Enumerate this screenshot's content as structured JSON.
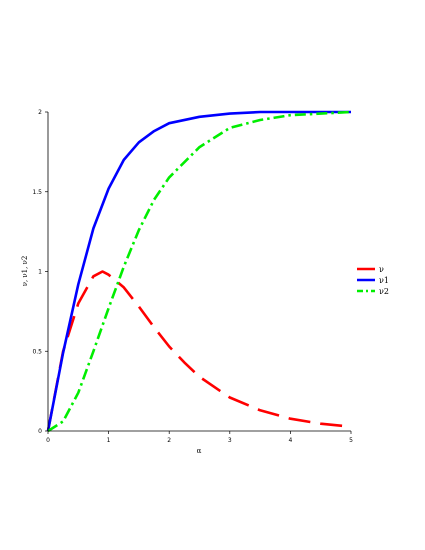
{
  "chart_data": {
    "type": "line",
    "xlabel": "α",
    "ylabel": "ν,  ν1,  ν2",
    "xlim": [
      0,
      5
    ],
    "ylim": [
      0,
      2
    ],
    "x_ticks": [
      "0",
      "1",
      "2",
      "3",
      "4",
      "5"
    ],
    "y_ticks": [
      "0",
      "0.5",
      "1",
      "1.5",
      "2"
    ],
    "grid": false,
    "legend_position": "right",
    "series": [
      {
        "name": "ν",
        "color": "#ff0000",
        "style": "long-dash",
        "x": [
          0,
          0.25,
          0.5,
          0.75,
          0.9,
          1.0,
          1.25,
          1.5,
          1.75,
          2.0,
          2.25,
          2.5,
          3.0,
          3.5,
          4.0,
          4.5,
          5.0
        ],
        "y": [
          0,
          0.5,
          0.8,
          0.97,
          1.0,
          0.98,
          0.9,
          0.78,
          0.65,
          0.53,
          0.43,
          0.34,
          0.21,
          0.13,
          0.077,
          0.046,
          0.027
        ]
      },
      {
        "name": "ν1",
        "color": "#0000ff",
        "style": "solid",
        "x": [
          0,
          0.25,
          0.5,
          0.75,
          1.0,
          1.25,
          1.5,
          1.75,
          2.0,
          2.5,
          3.0,
          3.5,
          4.0,
          5.0
        ],
        "y": [
          0,
          0.49,
          0.92,
          1.27,
          1.52,
          1.7,
          1.81,
          1.88,
          1.93,
          1.97,
          1.99,
          2.0,
          2.0,
          2.0
        ]
      },
      {
        "name": "ν2",
        "color": "#00ee00",
        "style": "dash-dot",
        "x": [
          0,
          0.25,
          0.5,
          0.75,
          1.0,
          1.25,
          1.5,
          1.75,
          2.0,
          2.5,
          3.0,
          3.5,
          4.0,
          5.0
        ],
        "y": [
          0,
          0.06,
          0.24,
          0.5,
          0.77,
          1.03,
          1.26,
          1.45,
          1.59,
          1.78,
          1.9,
          1.95,
          1.98,
          2.0
        ]
      }
    ]
  }
}
